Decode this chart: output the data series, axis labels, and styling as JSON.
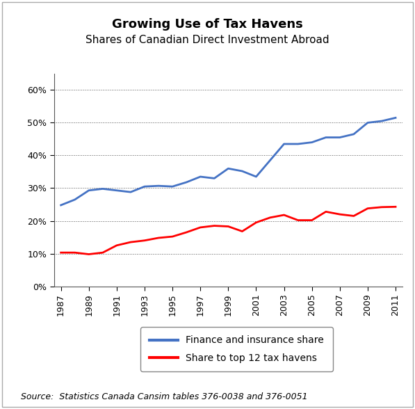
{
  "title": "Growing Use of Tax Havens",
  "subtitle": "Shares of Canadian Direct Investment Abroad",
  "source_text": "Source:  Statistics Canada Cansim tables 376-0038 and 376-0051",
  "years": [
    1987,
    1988,
    1989,
    1990,
    1991,
    1992,
    1993,
    1994,
    1995,
    1996,
    1997,
    1998,
    1999,
    2000,
    2001,
    2002,
    2003,
    2004,
    2005,
    2006,
    2007,
    2008,
    2009,
    2010,
    2011
  ],
  "finance_share": [
    0.248,
    0.265,
    0.293,
    0.298,
    0.293,
    0.288,
    0.305,
    0.307,
    0.305,
    0.318,
    0.335,
    0.33,
    0.36,
    0.352,
    0.335,
    0.385,
    0.435,
    0.435,
    0.44,
    0.455,
    0.455,
    0.465,
    0.5,
    0.505,
    0.515
  ],
  "tax_havens_share": [
    0.103,
    0.103,
    0.098,
    0.103,
    0.125,
    0.135,
    0.14,
    0.148,
    0.152,
    0.165,
    0.18,
    0.185,
    0.183,
    0.168,
    0.195,
    0.21,
    0.218,
    0.202,
    0.202,
    0.228,
    0.22,
    0.215,
    0.238,
    0.242,
    0.243
  ],
  "finance_color": "#4472C4",
  "tax_havens_color": "#FF0000",
  "ylim": [
    0,
    0.65
  ],
  "yticks": [
    0.0,
    0.1,
    0.2,
    0.3,
    0.4,
    0.5,
    0.6
  ],
  "xtick_labels": [
    "1987",
    "1989",
    "1991",
    "1993",
    "1995",
    "1997",
    "1999",
    "2001",
    "2003",
    "2005",
    "2007",
    "2009",
    "2011"
  ],
  "xtick_positions": [
    1987,
    1989,
    1991,
    1993,
    1995,
    1997,
    1999,
    2001,
    2003,
    2005,
    2007,
    2009,
    2011
  ],
  "legend_finance": "Finance and insurance share",
  "legend_tax": "Share to top 12 tax havens",
  "bg_color": "#FFFFFF",
  "grid_color": "#555555",
  "line_width": 2.0,
  "title_fontsize": 13,
  "subtitle_fontsize": 11,
  "tick_fontsize": 9,
  "source_fontsize": 9,
  "legend_fontsize": 10
}
